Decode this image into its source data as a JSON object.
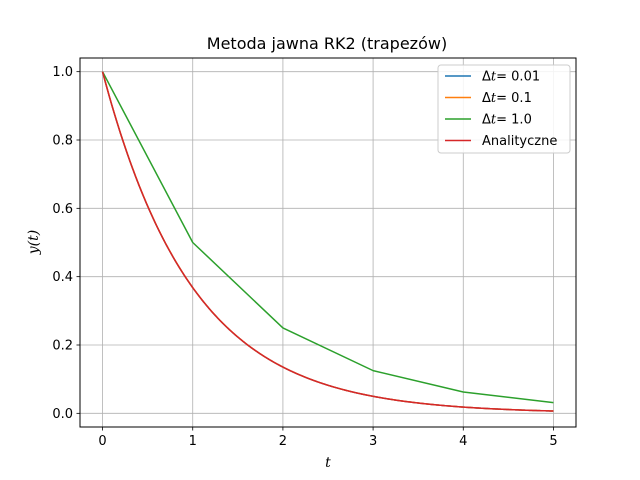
{
  "chart_data": {
    "type": "line",
    "title": "Metoda jawna RK2 (trapezów)",
    "xlabel": "t",
    "ylabel": "y(t)",
    "xlim": [
      -0.25,
      5.25
    ],
    "ylim": [
      -0.04,
      1.04
    ],
    "grid": true,
    "legend_position": "top-right",
    "x_ticks": [
      0,
      1,
      2,
      3,
      4,
      5
    ],
    "x_tick_labels": [
      "0",
      "1",
      "2",
      "3",
      "4",
      "5"
    ],
    "y_ticks": [
      0.0,
      0.2,
      0.4,
      0.6,
      0.8,
      1.0
    ],
    "y_tick_labels": [
      "0.0",
      "0.2",
      "0.4",
      "0.6",
      "0.8",
      "1.0"
    ],
    "series": [
      {
        "name": "Δt = 0.01",
        "legend_symbol": "Δ",
        "legend_var": "t",
        "legend_value": "= 0.01",
        "color": "#1f77b4",
        "function": "exp(-t)",
        "x": [
          0,
          5
        ],
        "step": 0.01
      },
      {
        "name": "Δt = 0.1",
        "legend_symbol": "Δ",
        "legend_var": "t",
        "legend_value": "= 0.1",
        "color": "#ff7f0e",
        "function": "exp(-t)",
        "x": [
          0,
          5
        ],
        "step": 0.1
      },
      {
        "name": "Δt = 1.0",
        "legend_symbol": "Δ",
        "legend_var": "t",
        "legend_value": "= 1.0",
        "color": "#2ca02c",
        "x": [
          0,
          1,
          2,
          3,
          4,
          5
        ],
        "y": [
          1.0,
          0.5,
          0.25,
          0.125,
          0.0625,
          0.03125
        ]
      },
      {
        "name": "Analityczne",
        "color": "#d62728",
        "function": "exp(-t)",
        "x": [
          0,
          5
        ],
        "step": 0.01
      }
    ]
  }
}
